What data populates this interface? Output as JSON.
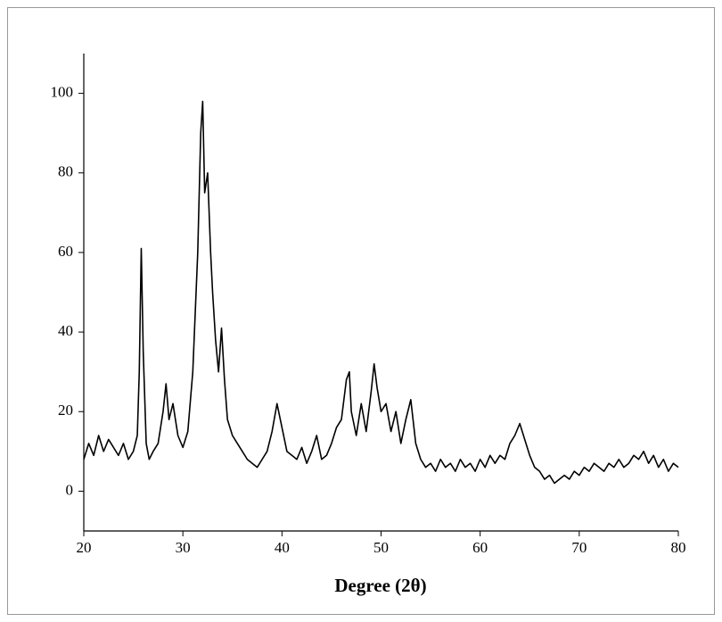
{
  "chart_data": {
    "type": "line",
    "xlabel": "Degree (2θ)",
    "x": [
      20,
      20.5,
      21,
      21.5,
      22,
      22.5,
      23,
      23.5,
      24,
      24.5,
      25,
      25.4,
      25.6,
      25.8,
      26,
      26.3,
      26.6,
      27,
      27.5,
      28,
      28.3,
      28.6,
      29,
      29.5,
      30,
      30.5,
      31,
      31.5,
      31.8,
      32,
      32.2,
      32.5,
      32.8,
      33,
      33.3,
      33.6,
      33.9,
      34.2,
      34.5,
      35,
      35.5,
      36,
      36.5,
      37,
      37.5,
      38,
      38.5,
      39,
      39.5,
      40,
      40.5,
      41,
      41.5,
      42,
      42.5,
      43,
      43.5,
      44,
      44.5,
      45,
      45.5,
      46,
      46.5,
      46.8,
      47,
      47.5,
      48,
      48.5,
      49,
      49.3,
      49.6,
      50,
      50.5,
      51,
      51.5,
      52,
      52.5,
      53,
      53.5,
      54,
      54.5,
      55,
      55.5,
      56,
      56.5,
      57,
      57.5,
      58,
      58.5,
      59,
      59.5,
      60,
      60.5,
      61,
      61.5,
      62,
      62.5,
      63,
      63.5,
      64,
      64.5,
      65,
      65.5,
      66,
      66.5,
      67,
      67.5,
      68,
      68.5,
      69,
      69.5,
      70,
      70.5,
      71,
      71.5,
      72,
      72.5,
      73,
      73.5,
      74,
      74.5,
      75,
      75.5,
      76,
      76.5,
      77,
      77.5,
      78,
      78.5,
      79,
      79.5,
      80
    ],
    "series": [
      {
        "color": "#000000",
        "values": [
          8,
          12,
          9,
          14,
          10,
          13,
          11,
          9,
          12,
          8,
          10,
          14,
          30,
          61,
          35,
          12,
          8,
          10,
          12,
          20,
          27,
          18,
          22,
          14,
          11,
          15,
          30,
          60,
          90,
          98,
          75,
          80,
          60,
          50,
          38,
          30,
          41,
          28,
          18,
          14,
          12,
          10,
          8,
          7,
          6,
          8,
          10,
          15,
          22,
          16,
          10,
          9,
          8,
          11,
          7,
          10,
          14,
          8,
          9,
          12,
          16,
          18,
          28,
          30,
          20,
          14,
          22,
          15,
          25,
          32,
          26,
          20,
          22,
          15,
          20,
          12,
          18,
          23,
          12,
          8,
          6,
          7,
          5,
          8,
          6,
          7,
          5,
          8,
          6,
          7,
          5,
          8,
          6,
          9,
          7,
          9,
          8,
          12,
          14,
          17,
          13,
          9,
          6,
          5,
          3,
          4,
          2,
          3,
          4,
          3,
          5,
          4,
          6,
          5,
          7,
          6,
          5,
          7,
          6,
          8,
          6,
          7,
          9,
          8,
          10,
          7,
          9,
          6,
          8,
          5,
          7,
          6
        ]
      }
    ],
    "xlim": [
      20,
      80
    ],
    "ylim": [
      -10,
      110
    ],
    "xticks": [
      20,
      30,
      40,
      50,
      60,
      70,
      80
    ],
    "yticks": [
      0,
      20,
      40,
      60,
      80,
      100
    ]
  }
}
